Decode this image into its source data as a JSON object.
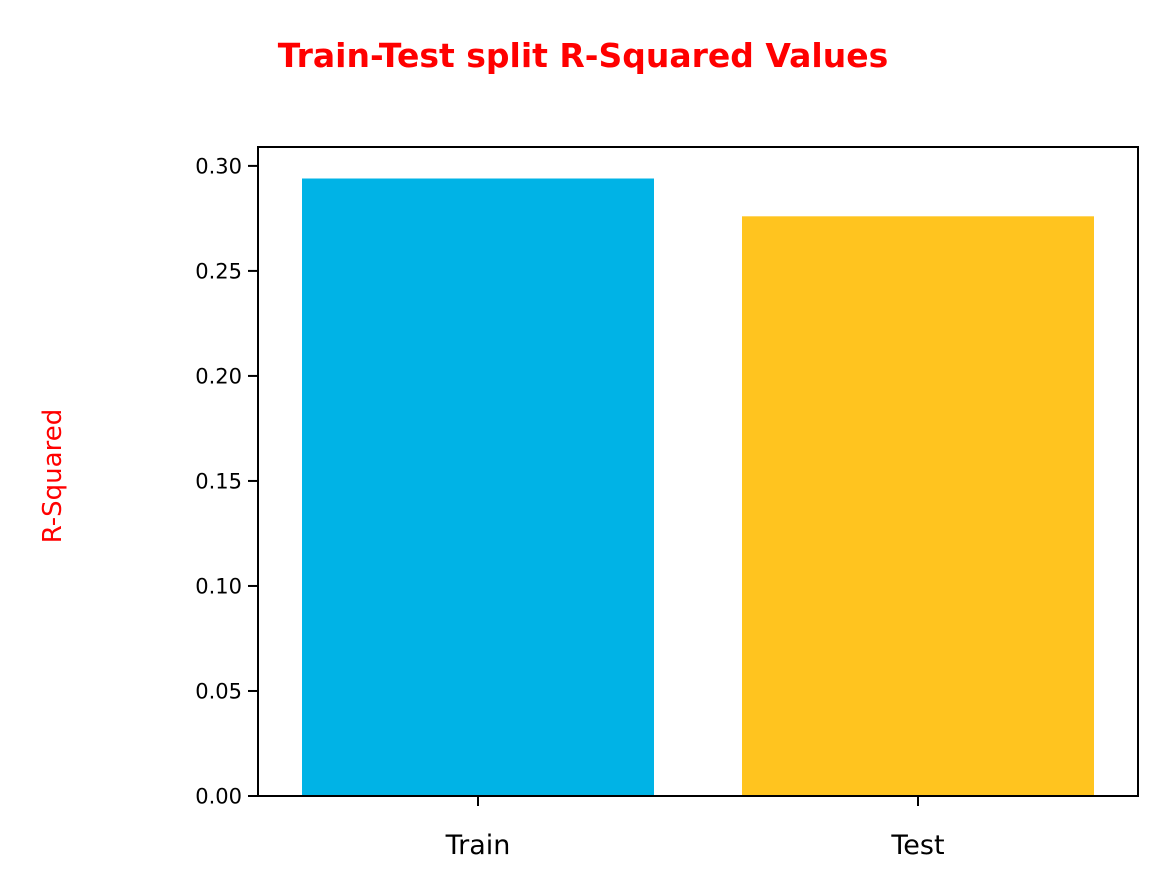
{
  "chart_data": {
    "type": "bar",
    "title": "Train-Test split R-Squared Values",
    "xlabel": "",
    "ylabel": "R-Squared",
    "categories": [
      "Train",
      "Test"
    ],
    "values": [
      0.294,
      0.276
    ],
    "ylim": [
      0,
      0.309
    ],
    "yticks": [
      0.0,
      0.05,
      0.1,
      0.15,
      0.2,
      0.25,
      0.3
    ],
    "ytick_labels": [
      "0.00",
      "0.05",
      "0.10",
      "0.15",
      "0.20",
      "0.25",
      "0.30"
    ],
    "bar_colors": [
      "#00b3e6",
      "#ffc41f"
    ],
    "title_color": "#ff0000",
    "ylabel_color": "#ff0000",
    "grid": false
  }
}
